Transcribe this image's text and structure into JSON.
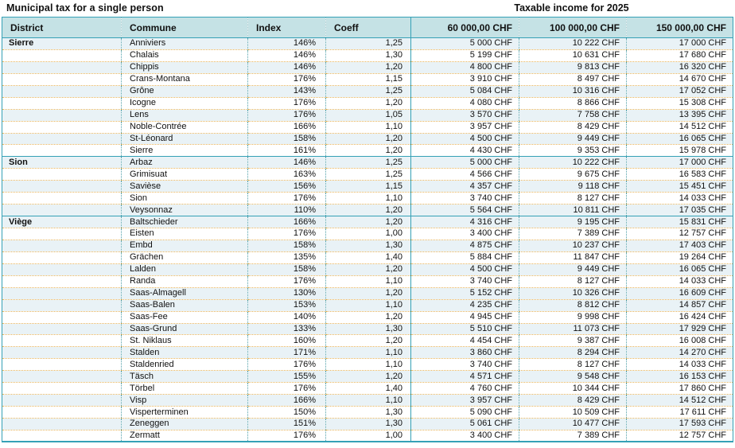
{
  "page": {
    "title_left": "Municipal tax for a single person",
    "title_right": "Taxable income for 2025"
  },
  "colors": {
    "border_teal": "#35a1b6",
    "header_bg": "#c5e2e5",
    "shaded_row_bg": "#e9f2f6",
    "row_separator_dotted": "#e8b45a",
    "column_separator_dotted": "#4f9fa9"
  },
  "table": {
    "headers": {
      "district": "District",
      "commune": "Commune",
      "index": "Index",
      "coeff": "Coeff",
      "amount_cols": [
        "60 000,00 CHF",
        "100 000,00 CHF",
        "150 000,00 CHF"
      ]
    },
    "districts": [
      {
        "name": "Sierre",
        "rows": [
          {
            "commune": "Anniviers",
            "index": "146%",
            "coeff": "1,25",
            "amounts": [
              "5 000 CHF",
              "10 222 CHF",
              "17 000 CHF"
            ]
          },
          {
            "commune": "Chalais",
            "index": "146%",
            "coeff": "1,30",
            "amounts": [
              "5 199 CHF",
              "10 631 CHF",
              "17 680 CHF"
            ]
          },
          {
            "commune": "Chippis",
            "index": "146%",
            "coeff": "1,20",
            "amounts": [
              "4 800 CHF",
              "9 813 CHF",
              "16 320 CHF"
            ]
          },
          {
            "commune": "Crans-Montana",
            "index": "176%",
            "coeff": "1,15",
            "amounts": [
              "3 910 CHF",
              "8 497 CHF",
              "14 670 CHF"
            ]
          },
          {
            "commune": "Grône",
            "index": "143%",
            "coeff": "1,25",
            "amounts": [
              "5 084 CHF",
              "10 316 CHF",
              "17 052 CHF"
            ]
          },
          {
            "commune": "Icogne",
            "index": "176%",
            "coeff": "1,20",
            "amounts": [
              "4 080 CHF",
              "8 866 CHF",
              "15 308 CHF"
            ]
          },
          {
            "commune": "Lens",
            "index": "176%",
            "coeff": "1,05",
            "amounts": [
              "3 570 CHF",
              "7 758 CHF",
              "13 395 CHF"
            ]
          },
          {
            "commune": "Noble-Contrée",
            "index": "166%",
            "coeff": "1,10",
            "amounts": [
              "3 957 CHF",
              "8 429 CHF",
              "14 512 CHF"
            ]
          },
          {
            "commune": "St-Léonard",
            "index": "158%",
            "coeff": "1,20",
            "amounts": [
              "4 500 CHF",
              "9 449 CHF",
              "16 065 CHF"
            ]
          },
          {
            "commune": "Sierre",
            "index": "161%",
            "coeff": "1,20",
            "amounts": [
              "4 430 CHF",
              "9 353 CHF",
              "15 978 CHF"
            ]
          }
        ]
      },
      {
        "name": "Sion",
        "rows": [
          {
            "commune": "Arbaz",
            "index": "146%",
            "coeff": "1,25",
            "amounts": [
              "5 000 CHF",
              "10 222 CHF",
              "17 000 CHF"
            ]
          },
          {
            "commune": "Grimisuat",
            "index": "163%",
            "coeff": "1,25",
            "amounts": [
              "4 566 CHF",
              "9 675 CHF",
              "16 583 CHF"
            ]
          },
          {
            "commune": "Savièse",
            "index": "156%",
            "coeff": "1,15",
            "amounts": [
              "4 357 CHF",
              "9 118 CHF",
              "15 451 CHF"
            ]
          },
          {
            "commune": "Sion",
            "index": "176%",
            "coeff": "1,10",
            "amounts": [
              "3 740 CHF",
              "8 127 CHF",
              "14 033 CHF"
            ]
          },
          {
            "commune": "Veysonnaz",
            "index": "110%",
            "coeff": "1,20",
            "amounts": [
              "5 564 CHF",
              "10 811 CHF",
              "17 035 CHF"
            ]
          }
        ]
      },
      {
        "name": "Viège",
        "rows": [
          {
            "commune": "Baltschieder",
            "index": "166%",
            "coeff": "1,20",
            "amounts": [
              "4 316 CHF",
              "9 195 CHF",
              "15 831 CHF"
            ]
          },
          {
            "commune": "Eisten",
            "index": "176%",
            "coeff": "1,00",
            "amounts": [
              "3 400 CHF",
              "7 389 CHF",
              "12 757 CHF"
            ]
          },
          {
            "commune": "Embd",
            "index": "158%",
            "coeff": "1,30",
            "amounts": [
              "4 875 CHF",
              "10 237 CHF",
              "17 403 CHF"
            ]
          },
          {
            "commune": "Grächen",
            "index": "135%",
            "coeff": "1,40",
            "amounts": [
              "5 884 CHF",
              "11 847 CHF",
              "19 264 CHF"
            ]
          },
          {
            "commune": "Lalden",
            "index": "158%",
            "coeff": "1,20",
            "amounts": [
              "4 500 CHF",
              "9 449 CHF",
              "16 065 CHF"
            ]
          },
          {
            "commune": "Randa",
            "index": "176%",
            "coeff": "1,10",
            "amounts": [
              "3 740 CHF",
              "8 127 CHF",
              "14 033 CHF"
            ]
          },
          {
            "commune": "Saas-Almagell",
            "index": "130%",
            "coeff": "1,20",
            "amounts": [
              "5 152 CHF",
              "10 326 CHF",
              "16 609 CHF"
            ]
          },
          {
            "commune": "Saas-Balen",
            "index": "153%",
            "coeff": "1,10",
            "amounts": [
              "4 235 CHF",
              "8 812 CHF",
              "14 857 CHF"
            ]
          },
          {
            "commune": "Saas-Fee",
            "index": "140%",
            "coeff": "1,20",
            "amounts": [
              "4 945 CHF",
              "9 998 CHF",
              "16 424 CHF"
            ]
          },
          {
            "commune": "Saas-Grund",
            "index": "133%",
            "coeff": "1,30",
            "amounts": [
              "5 510 CHF",
              "11 073 CHF",
              "17 929 CHF"
            ]
          },
          {
            "commune": "St. Niklaus",
            "index": "160%",
            "coeff": "1,20",
            "amounts": [
              "4 454 CHF",
              "9 387 CHF",
              "16 008 CHF"
            ]
          },
          {
            "commune": "Stalden",
            "index": "171%",
            "coeff": "1,10",
            "amounts": [
              "3 860 CHF",
              "8 294 CHF",
              "14 270 CHF"
            ]
          },
          {
            "commune": "Staldenried",
            "index": "176%",
            "coeff": "1,10",
            "amounts": [
              "3 740 CHF",
              "8 127 CHF",
              "14 033 CHF"
            ]
          },
          {
            "commune": "Täsch",
            "index": "155%",
            "coeff": "1,20",
            "amounts": [
              "4 571 CHF",
              "9 548 CHF",
              "16 153 CHF"
            ]
          },
          {
            "commune": "Törbel",
            "index": "176%",
            "coeff": "1,40",
            "amounts": [
              "4 760 CHF",
              "10 344 CHF",
              "17 860 CHF"
            ]
          },
          {
            "commune": "Visp",
            "index": "166%",
            "coeff": "1,10",
            "amounts": [
              "3 957 CHF",
              "8 429 CHF",
              "14 512 CHF"
            ]
          },
          {
            "commune": "Visperterminen",
            "index": "150%",
            "coeff": "1,30",
            "amounts": [
              "5 090 CHF",
              "10 509 CHF",
              "17 611 CHF"
            ]
          },
          {
            "commune": "Zeneggen",
            "index": "151%",
            "coeff": "1,30",
            "amounts": [
              "5 061 CHF",
              "10 477 CHF",
              "17 593 CHF"
            ]
          },
          {
            "commune": "Zermatt",
            "index": "176%",
            "coeff": "1,00",
            "amounts": [
              "3 400 CHF",
              "7 389 CHF",
              "12 757 CHF"
            ]
          }
        ]
      }
    ]
  }
}
